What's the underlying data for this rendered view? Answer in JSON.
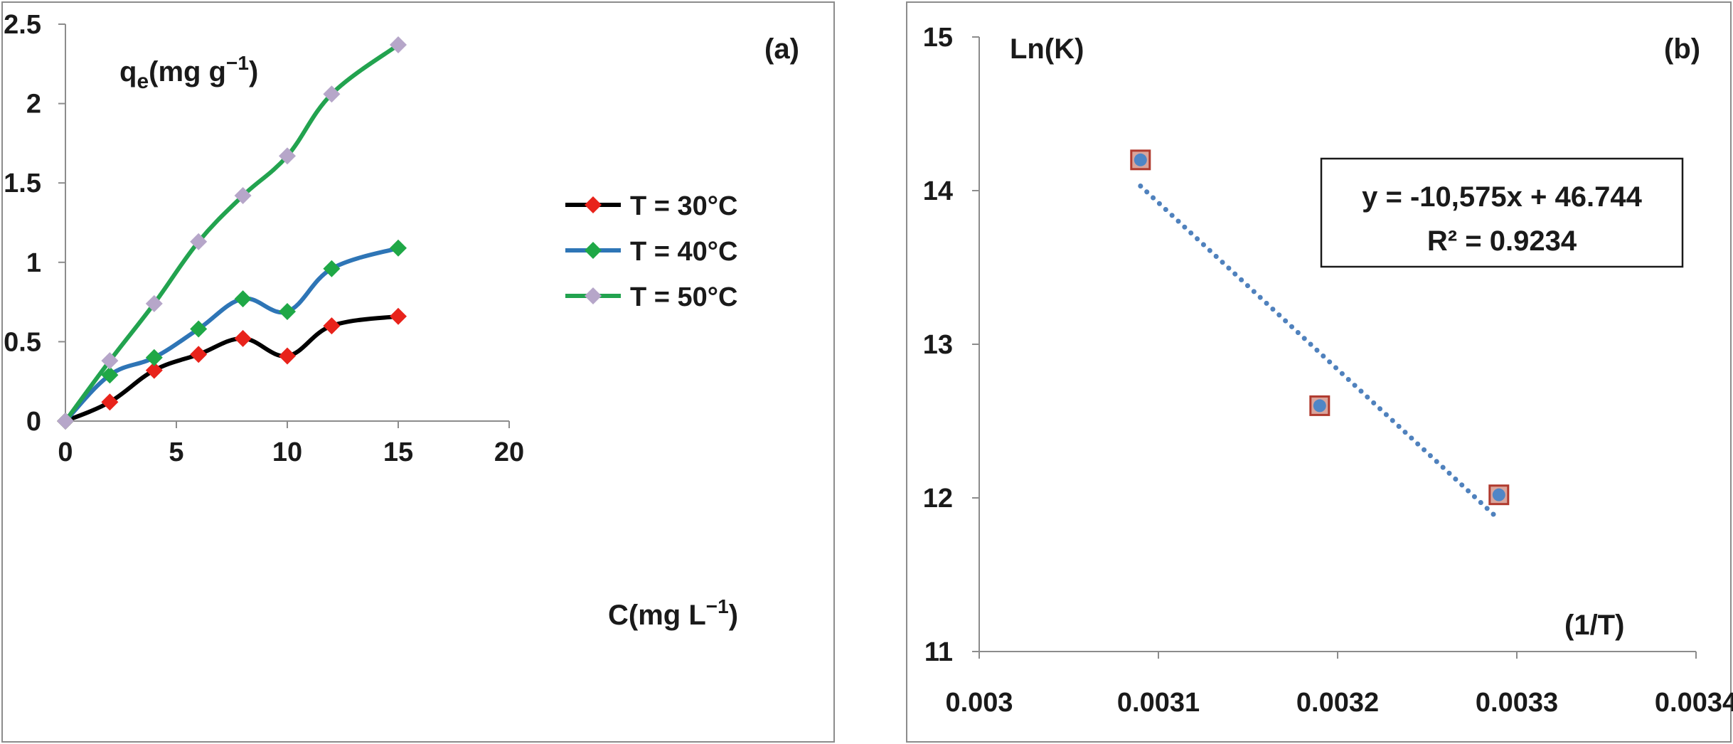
{
  "chart_data": [
    {
      "type": "line",
      "panel_label": "(a)",
      "ylabel": "q",
      "ylabel_sub": "e",
      "ylabel_unit": "(mg g",
      "ylabel_sup": "−1",
      "ylabel_close": ")",
      "xlabel": "C(mg L",
      "xlabel_sup": "−1",
      "xlabel_close": ")",
      "xlim": [
        0,
        20
      ],
      "ylim": [
        0,
        2.5
      ],
      "xticks": [
        "0",
        "5",
        "10",
        "15",
        "20"
      ],
      "xtick_values": [
        0,
        5,
        10,
        15,
        20
      ],
      "yticks": [
        "0",
        "0.5",
        "1",
        "1.5",
        "2",
        "2.5"
      ],
      "ytick_values": [
        0,
        0.5,
        1,
        1.5,
        2,
        2.5
      ],
      "x": [
        0,
        2,
        4,
        6,
        8,
        10,
        12,
        15
      ],
      "series": [
        {
          "name": "T = 30°C",
          "line_color": "#000000",
          "marker_color": "#e8231b",
          "marker": "diamond",
          "values": [
            0,
            0.12,
            0.32,
            0.42,
            0.52,
            0.41,
            0.6,
            0.66
          ]
        },
        {
          "name": "T = 40°C",
          "line_color": "#2e75b6",
          "marker_color": "#1fa846",
          "marker": "diamond",
          "values": [
            0,
            0.29,
            0.4,
            0.58,
            0.77,
            0.69,
            0.96,
            1.09
          ]
        },
        {
          "name": "T = 50°C",
          "line_color": "#22a34f",
          "marker_color": "#b6a6c9",
          "marker": "diamond",
          "values": [
            0,
            0.38,
            0.74,
            1.13,
            1.42,
            1.67,
            2.06,
            2.37
          ]
        }
      ],
      "legend_position": "right"
    },
    {
      "type": "scatter",
      "panel_label": "(b)",
      "ylabel": "Ln(K)",
      "xlabel": "(1/T)",
      "xlim": [
        0.003,
        0.0034
      ],
      "ylim": [
        11,
        15
      ],
      "xticks": [
        "0.003",
        "0.0031",
        "0.0032",
        "0.0033",
        "0.0034"
      ],
      "xtick_values": [
        0.003,
        0.0031,
        0.0032,
        0.0033,
        0.0034
      ],
      "yticks": [
        "11",
        "12",
        "13",
        "14",
        "15"
      ],
      "ytick_values": [
        11,
        12,
        13,
        14,
        15
      ],
      "points": {
        "x": [
          0.00309,
          0.00319,
          0.00329
        ],
        "y": [
          14.2,
          12.6,
          12.02
        ]
      },
      "trendline": {
        "x": [
          0.00309,
          0.00329
        ],
        "y": [
          14.03,
          11.86
        ],
        "style": "dotted"
      },
      "marker_fill": "#4f86c6",
      "marker_edge": "#b03a2e",
      "trend_color": "#4f81bd",
      "equation": "y = -10,575x + 46.744",
      "r2": "R² = 0.9234"
    }
  ]
}
